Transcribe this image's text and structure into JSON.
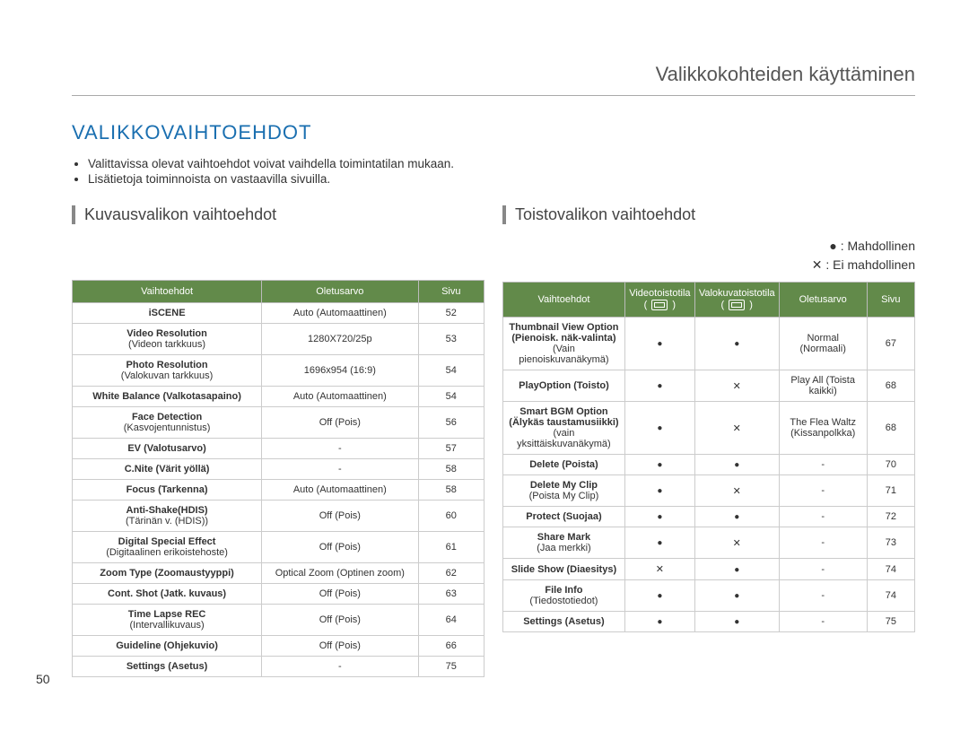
{
  "page": {
    "top_title": "Valikkokohteiden käyttäminen",
    "section_title": "VALIKKOVAIHTOEHDOT",
    "section_title_color": "#1a6fb0",
    "bullets": [
      "Valittavissa olevat vaihtoehdot voivat vaihdella toimintatilan mukaan.",
      "Lisätietoja toiminnoista on vastaavilla sivuilla."
    ],
    "page_number": "50"
  },
  "left": {
    "heading": "Kuvausvalikon vaihtoehdot",
    "columns": [
      "Vaihtoehdot",
      "Oletusarvo",
      "Sivu"
    ],
    "rows": [
      {
        "label": "iSCENE",
        "sub": "",
        "default": "Auto (Automaattinen)",
        "page": "52"
      },
      {
        "label": "Video Resolution",
        "sub": "(Videon tarkkuus)",
        "default": "1280X720/25p",
        "page": "53"
      },
      {
        "label": "Photo Resolution",
        "sub": "(Valokuvan tarkkuus)",
        "default": "1696x954 (16:9)",
        "page": "54"
      },
      {
        "label": "White Balance (Valkotasapaino)",
        "sub": "",
        "default": "Auto (Automaattinen)",
        "page": "54"
      },
      {
        "label": "Face Detection",
        "sub": "(Kasvojentunnistus)",
        "default": "Off (Pois)",
        "page": "56"
      },
      {
        "label": "EV (Valotusarvo)",
        "sub": "",
        "default": "-",
        "page": "57"
      },
      {
        "label": "C.Nite (Värit yöllä)",
        "sub": "",
        "default": "-",
        "page": "58"
      },
      {
        "label": "Focus (Tarkenna)",
        "sub": "",
        "default": "Auto (Automaattinen)",
        "page": "58"
      },
      {
        "label": "Anti-Shake(HDIS)",
        "sub": "(Tärinän v. (HDIS))",
        "default": "Off (Pois)",
        "page": "60"
      },
      {
        "label": "Digital Special Effect",
        "sub": "(Digitaalinen erikoistehoste)",
        "default": "Off (Pois)",
        "page": "61"
      },
      {
        "label": "Zoom Type (Zoomaustyyppi)",
        "sub": "",
        "default": "Optical Zoom (Optinen zoom)",
        "page": "62"
      },
      {
        "label": "Cont. Shot (Jatk. kuvaus)",
        "sub": "",
        "default": "Off (Pois)",
        "page": "63"
      },
      {
        "label": "Time Lapse REC",
        "sub": "(Intervallikuvaus)",
        "default": "Off (Pois)",
        "page": "64"
      },
      {
        "label": "Guideline (Ohjekuvio)",
        "sub": "",
        "default": "Off (Pois)",
        "page": "66"
      },
      {
        "label": "Settings (Asetus)",
        "sub": "",
        "default": "-",
        "page": "75"
      }
    ]
  },
  "right": {
    "heading": "Toistovalikon vaihtoehdot",
    "legend": {
      "possible": "● : Mahdollinen",
      "not_possible": "✕ : Ei mahdollinen"
    },
    "columns": {
      "c0": "Vaihtoehdot",
      "c1": "Videotoistotila",
      "c2": "Valokuvatoistotila",
      "c3": "Oletusarvo",
      "c4": "Sivu"
    },
    "rows": [
      {
        "label": "Thumbnail View Option (Pienoisk. näk-valinta)",
        "sub": "(Vain pienoiskuvanäkymä)",
        "video": "dot",
        "photo": "dot",
        "default": "Normal (Normaali)",
        "page": "67"
      },
      {
        "label": "PlayOption (Toisto)",
        "sub": "",
        "video": "dot",
        "photo": "cross",
        "default": "Play All (Toista kaikki)",
        "page": "68"
      },
      {
        "label": "Smart BGM Option (Älykäs taustamusiikki)",
        "sub": "(vain yksittäiskuvanäkymä)",
        "video": "dot",
        "photo": "cross",
        "default": "The Flea Waltz (Kis­sanpolkka)",
        "page": "68"
      },
      {
        "label": "Delete (Poista)",
        "sub": "",
        "video": "dot",
        "photo": "dot",
        "default": "-",
        "page": "70"
      },
      {
        "label": "Delete My Clip",
        "sub": "(Poista My Clip)",
        "video": "dot",
        "photo": "cross",
        "default": "-",
        "page": "71"
      },
      {
        "label": "Protect (Suojaa)",
        "sub": "",
        "video": "dot",
        "photo": "dot",
        "default": "-",
        "page": "72"
      },
      {
        "label": "Share Mark",
        "sub": "(Jaa merkki)",
        "video": "dot",
        "photo": "cross",
        "default": "-",
        "page": "73"
      },
      {
        "label": "Slide Show (Diaesitys)",
        "sub": "",
        "video": "cross",
        "photo": "dot",
        "default": "-",
        "page": "74"
      },
      {
        "label": "File Info",
        "sub": "(Tiedostotiedot)",
        "video": "dot",
        "photo": "dot",
        "default": "-",
        "page": "74"
      },
      {
        "label": "Settings (Asetus)",
        "sub": "",
        "video": "dot",
        "photo": "dot",
        "default": "-",
        "page": "75"
      }
    ]
  }
}
